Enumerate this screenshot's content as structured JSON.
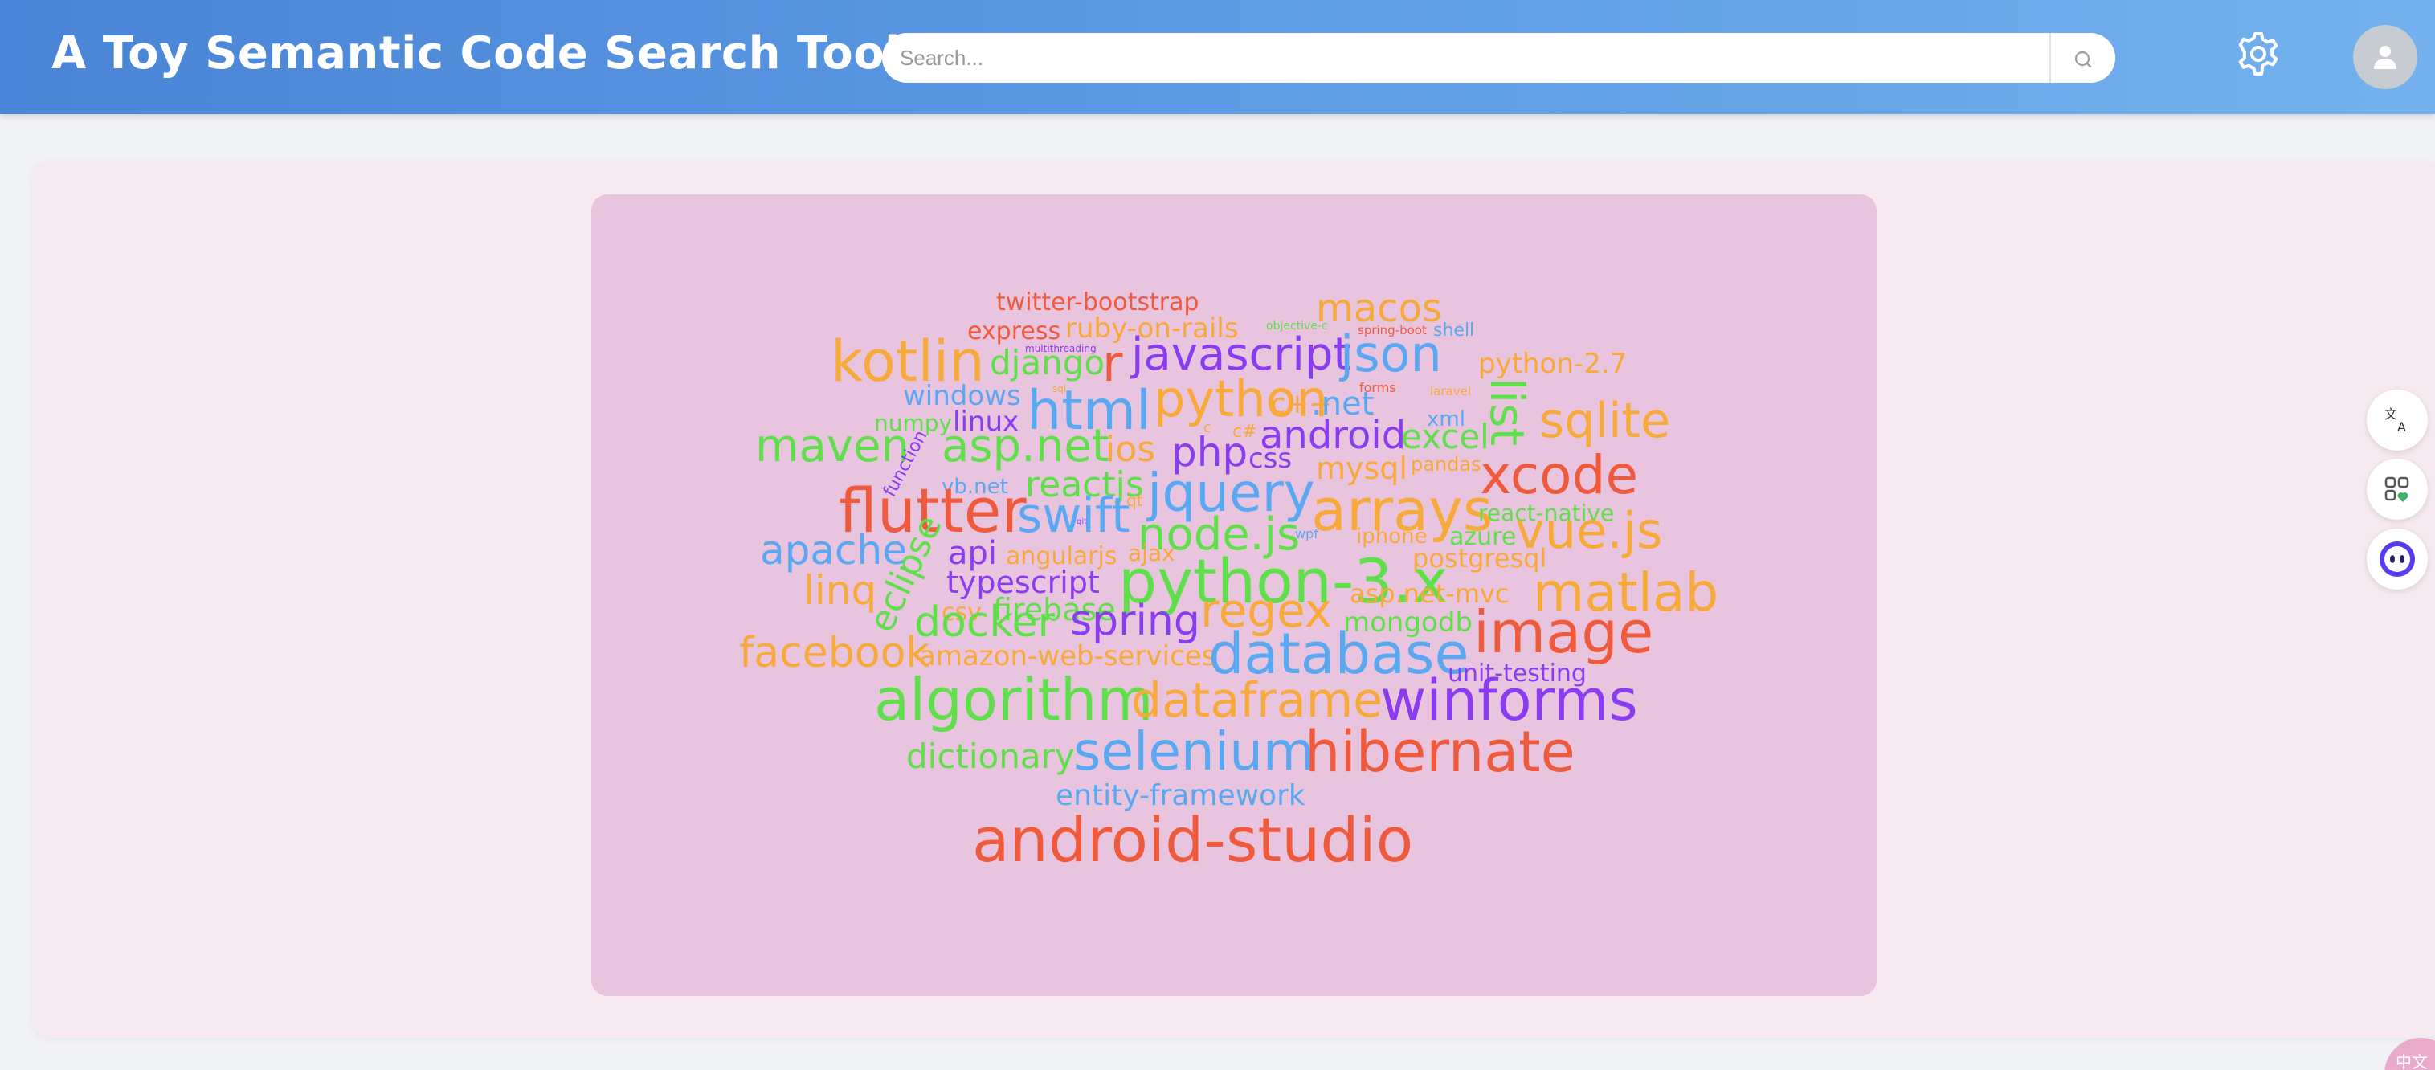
{
  "header": {
    "title": "A Toy Semantic Code Search Tool",
    "search": {
      "placeholder": "Search...",
      "value": "",
      "icon": "search-icon"
    },
    "settings_icon": "gear-icon",
    "avatar_icon": "user-icon"
  },
  "colors": {
    "header_start": "#4a84d6",
    "header_end": "#74b1ee",
    "card_bg": "#f6eaf0",
    "cloud_bg": "#e9c4de",
    "word_red": "#f05a3c",
    "word_orange": "#f7a93a",
    "word_green": "#5fe04a",
    "word_blue": "#5aa8f2",
    "word_purple": "#8a3cf0"
  },
  "word_cloud": {
    "words": [
      "twitter-bootstrap",
      "macos",
      "express",
      "ruby-on-rails",
      "objective-c",
      "spring-boot",
      "shell",
      "kotlin",
      "django",
      "multithreading",
      "r",
      "javascript",
      "json",
      "python-2.7",
      "windows",
      "html",
      "python",
      "c++",
      ".net",
      "laravel",
      "list",
      "sqlite",
      "numpy",
      "linux",
      "xml",
      "maven",
      "asp.net",
      "ios",
      "php",
      "android",
      "excel",
      "function",
      "css",
      "mysql",
      "pandas",
      "xcode",
      "vb.net",
      "reactjs",
      "jquery",
      "flutter",
      "swift",
      "qt",
      "arrays",
      "react-native",
      "node.js",
      "vue.js",
      "apache",
      "eclipse",
      "api",
      "angularjs",
      "ajax",
      "wpf",
      "iphone",
      "azure",
      "postgresql",
      "linq",
      "typescript",
      "python-3.x",
      "csv",
      "firebase",
      "asp.net-mvc",
      "matlab",
      "docker",
      "spring",
      "regex",
      "mongodb",
      "image",
      "facebook",
      "amazon-web-services",
      "database",
      "unit-testing",
      "algorithm",
      "dataframe",
      "winforms",
      "dictionary",
      "selenium",
      "hibernate",
      "entity-framework",
      "android-studio",
      "forms",
      "c#",
      "c",
      "sql",
      "git"
    ]
  },
  "side_tools": [
    {
      "name": "translate-icon"
    },
    {
      "name": "apps-icon"
    },
    {
      "name": "assistant-icon"
    }
  ],
  "corner_badge": {
    "label": "中文"
  }
}
